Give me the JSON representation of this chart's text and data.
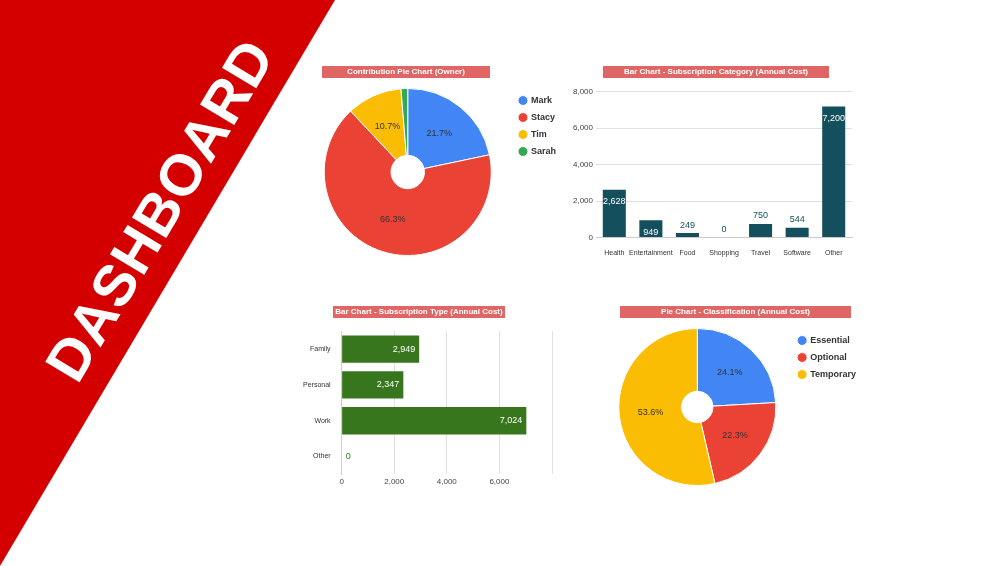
{
  "chart_data": [
    {
      "type": "donut",
      "title": "Contribution Pie Chart (Owner)",
      "categories": [
        "Mark",
        "Stacy",
        "Tim",
        "Sarah"
      ],
      "values": [
        21.7,
        66.3,
        10.7,
        1.3
      ],
      "colors": [
        "#4285f4",
        "#ea4335",
        "#fbbc04",
        "#34a853"
      ],
      "value_labels": [
        "21.7%",
        "66.3%",
        "10.7%",
        null
      ],
      "legend": "right"
    },
    {
      "type": "bar",
      "title": "Bar Chart - Subscription Category (Annual Cost)",
      "categories": [
        "Health",
        "Entertainment",
        "Food",
        "Shopping",
        "Travel",
        "Software",
        "Other"
      ],
      "values": [
        2628,
        949,
        249,
        0,
        750,
        544,
        7200
      ],
      "color": "#134f5c",
      "ylim": [
        0,
        8000
      ],
      "yticks": [
        {
          "value": 0,
          "label": "0"
        },
        {
          "value": 2000,
          "label": "2,000"
        },
        {
          "value": 4000,
          "label": "4,000"
        },
        {
          "value": 6000,
          "label": "6,000"
        },
        {
          "value": 8000,
          "label": "8,000"
        }
      ],
      "grid": "y",
      "value_labels": [
        "2,628",
        "949",
        "249",
        "0",
        "750",
        "544",
        "7,200"
      ]
    },
    {
      "type": "bar",
      "orientation": "horizontal",
      "title": "Bar Chart - Subscription Type (Annual Cost)",
      "categories": [
        "Family",
        "Personal",
        "Work",
        "Other"
      ],
      "values": [
        2949,
        2347,
        7024,
        0
      ],
      "color": "#38761d",
      "xlim": [
        0,
        8000
      ],
      "xticks": [
        {
          "value": 0,
          "label": "0"
        },
        {
          "value": 2000,
          "label": "2,000"
        },
        {
          "value": 4000,
          "label": "4,000"
        },
        {
          "value": 6000,
          "label": "6,000"
        },
        {
          "value": 8000,
          "label": null
        }
      ],
      "grid": "x",
      "value_labels": [
        "2,949",
        "2,347",
        "7,024",
        "0"
      ]
    },
    {
      "type": "donut",
      "title": "Pie Chart - Classification (Annual Cost)",
      "categories": [
        "Essential",
        "Optional",
        "Temporary"
      ],
      "values": [
        24.1,
        22.3,
        53.6
      ],
      "colors": [
        "#4285f4",
        "#ea4335",
        "#fbbc04"
      ],
      "value_labels": [
        "24.1%",
        "22.3%",
        "53.6%"
      ],
      "legend": "right"
    },
    {
      "type": "other",
      "title": "DASHBOARD"
    }
  ]
}
